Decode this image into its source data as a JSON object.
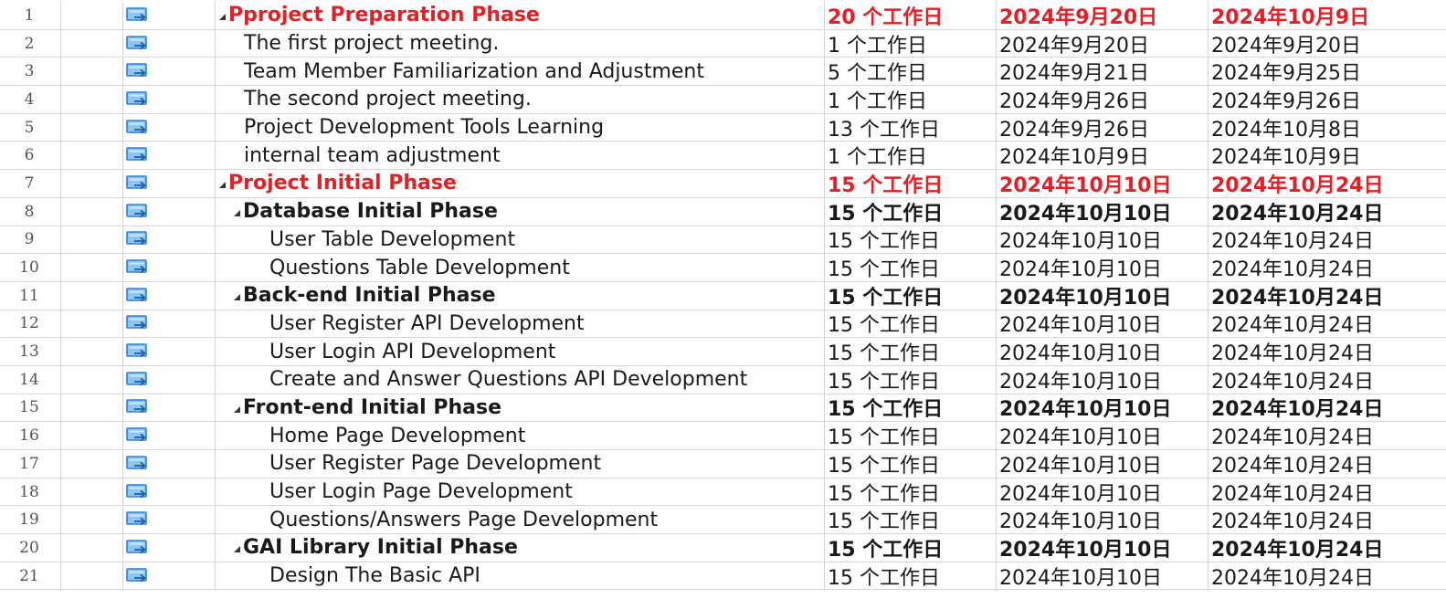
{
  "colors": {
    "critical_text": "#e51f24",
    "grid_line": "#d6d6d6",
    "icon_blue": "#2e7fd9",
    "icon_light": "#8cc6f2"
  },
  "rows": [
    {
      "id": "1",
      "name": "Pproject Preparation Phase",
      "duration": "20 个工作日",
      "start": "2024年9月20日",
      "finish": "2024年10月9日",
      "level": 0,
      "summary": true,
      "critical": true,
      "icon": "auto-scheduled-task-icon"
    },
    {
      "id": "2",
      "name": "The first project meeting.",
      "duration": "1 个工作日",
      "start": "2024年9月20日",
      "finish": "2024年9月20日",
      "level": 1,
      "summary": false,
      "critical": false,
      "icon": "auto-scheduled-task-icon"
    },
    {
      "id": "3",
      "name": "Team Member Familiarization and Adjustment",
      "duration": "5 个工作日",
      "start": "2024年9月21日",
      "finish": "2024年9月25日",
      "level": 1,
      "summary": false,
      "critical": false,
      "icon": "auto-scheduled-task-icon"
    },
    {
      "id": "4",
      "name": "The second project meeting.",
      "duration": "1 个工作日",
      "start": "2024年9月26日",
      "finish": "2024年9月26日",
      "level": 1,
      "summary": false,
      "critical": false,
      "icon": "auto-scheduled-task-icon"
    },
    {
      "id": "5",
      "name": "Project Development Tools Learning",
      "duration": "13 个工作日",
      "start": "2024年9月26日",
      "finish": "2024年10月8日",
      "level": 1,
      "summary": false,
      "critical": false,
      "icon": "auto-scheduled-task-icon"
    },
    {
      "id": "6",
      "name": "internal team adjustment",
      "duration": "1 个工作日",
      "start": "2024年10月9日",
      "finish": "2024年10月9日",
      "level": 1,
      "summary": false,
      "critical": false,
      "icon": "auto-scheduled-task-icon"
    },
    {
      "id": "7",
      "name": "Project Initial Phase",
      "duration": "15 个工作日",
      "start": "2024年10月10日",
      "finish": "2024年10月24日",
      "level": 0,
      "summary": true,
      "critical": true,
      "icon": "auto-scheduled-task-icon"
    },
    {
      "id": "8",
      "name": "Database Initial Phase",
      "duration": "15 个工作日",
      "start": "2024年10月10日",
      "finish": "2024年10月24日",
      "level": 1,
      "summary": true,
      "critical": false,
      "icon": "auto-scheduled-task-icon"
    },
    {
      "id": "9",
      "name": "User Table Development",
      "duration": "15 个工作日",
      "start": "2024年10月10日",
      "finish": "2024年10月24日",
      "level": 2,
      "summary": false,
      "critical": false,
      "icon": "auto-scheduled-task-icon"
    },
    {
      "id": "10",
      "name": "Questions Table Development",
      "duration": "15 个工作日",
      "start": "2024年10月10日",
      "finish": "2024年10月24日",
      "level": 2,
      "summary": false,
      "critical": false,
      "icon": "auto-scheduled-task-icon"
    },
    {
      "id": "11",
      "name": "Back-end Initial Phase",
      "duration": "15 个工作日",
      "start": "2024年10月10日",
      "finish": "2024年10月24日",
      "level": 1,
      "summary": true,
      "critical": false,
      "icon": "auto-scheduled-task-icon"
    },
    {
      "id": "12",
      "name": "User Register API Development",
      "duration": "15 个工作日",
      "start": "2024年10月10日",
      "finish": "2024年10月24日",
      "level": 2,
      "summary": false,
      "critical": false,
      "icon": "auto-scheduled-task-icon"
    },
    {
      "id": "13",
      "name": "User Login API Development",
      "duration": "15 个工作日",
      "start": "2024年10月10日",
      "finish": "2024年10月24日",
      "level": 2,
      "summary": false,
      "critical": false,
      "icon": "auto-scheduled-task-icon"
    },
    {
      "id": "14",
      "name": "Create and Answer Questions API Development",
      "duration": "15 个工作日",
      "start": "2024年10月10日",
      "finish": "2024年10月24日",
      "level": 2,
      "summary": false,
      "critical": false,
      "icon": "auto-scheduled-task-icon"
    },
    {
      "id": "15",
      "name": "Front-end Initial Phase",
      "duration": "15 个工作日",
      "start": "2024年10月10日",
      "finish": "2024年10月24日",
      "level": 1,
      "summary": true,
      "critical": false,
      "icon": "auto-scheduled-task-icon"
    },
    {
      "id": "16",
      "name": "Home Page Development",
      "duration": "15 个工作日",
      "start": "2024年10月10日",
      "finish": "2024年10月24日",
      "level": 2,
      "summary": false,
      "critical": false,
      "icon": "auto-scheduled-task-icon"
    },
    {
      "id": "17",
      "name": "User Register Page Development",
      "duration": "15 个工作日",
      "start": "2024年10月10日",
      "finish": "2024年10月24日",
      "level": 2,
      "summary": false,
      "critical": false,
      "icon": "auto-scheduled-task-icon"
    },
    {
      "id": "18",
      "name": "User Login Page Development",
      "duration": "15 个工作日",
      "start": "2024年10月10日",
      "finish": "2024年10月24日",
      "level": 2,
      "summary": false,
      "critical": false,
      "icon": "auto-scheduled-task-icon"
    },
    {
      "id": "19",
      "name": "Questions/Answers Page Development",
      "duration": "15 个工作日",
      "start": "2024年10月10日",
      "finish": "2024年10月24日",
      "level": 2,
      "summary": false,
      "critical": false,
      "icon": "auto-scheduled-task-icon"
    },
    {
      "id": "20",
      "name": "GAI Library Initial Phase",
      "duration": "15 个工作日",
      "start": "2024年10月10日",
      "finish": "2024年10月24日",
      "level": 1,
      "summary": true,
      "critical": false,
      "icon": "auto-scheduled-task-icon"
    },
    {
      "id": "21",
      "name": "Design The Basic API",
      "duration": "15 个工作日",
      "start": "2024年10月10日",
      "finish": "2024年10月24日",
      "level": 2,
      "summary": false,
      "critical": false,
      "icon": "auto-scheduled-task-icon"
    }
  ]
}
